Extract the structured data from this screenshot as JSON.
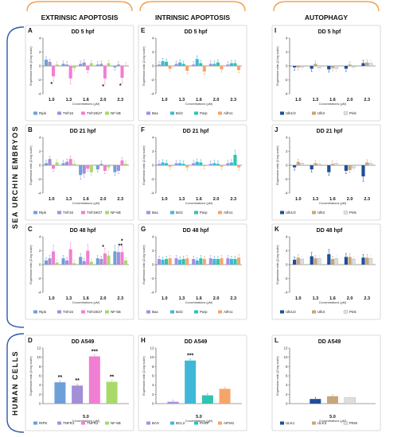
{
  "figure": {
    "columns": [
      "EXTRINSIC APOPTOSIS",
      "INTRINSIC APOPTOSIS",
      "AUTOPHAGY"
    ],
    "rows": [
      "SEA URCHIN EMBRYOS",
      "HUMAN CELLS"
    ]
  },
  "colors": {
    "extrinsic": [
      "#6f9fd8",
      "#a28fd6",
      "#f07fd3",
      "#a8d96a"
    ],
    "intrinsic": [
      "#a98ee0",
      "#3fb8d8",
      "#2fc3b0",
      "#f5a56a"
    ],
    "autophagy": [
      "#1f4e9a",
      "#c8a57a",
      "#dedede"
    ],
    "accent": "#f0a050",
    "bracket": "#2a5aa8"
  },
  "chart_data": [
    {
      "id": "A",
      "type": "bar",
      "title": "DD 5 hpf",
      "ylabel": "Expression ratio (2-log scale)",
      "xlabel": "Concentrations (μM)",
      "categories": [
        "1.0",
        "1.3",
        "1.6",
        "2.0",
        "2.3"
      ],
      "ylim": [
        -4,
        4
      ],
      "yticks": [
        4,
        2,
        0,
        -2,
        -4
      ],
      "series": [
        {
          "name": "Ripk",
          "values": [
            0.9,
            0.3,
            0.3,
            0.2,
            -0.2
          ]
        },
        {
          "name": "Tnfr16",
          "values": [
            0.6,
            0.2,
            0.5,
            0.3,
            0.2
          ]
        },
        {
          "name": "Tnfr19/27",
          "values": [
            -1.5,
            -1.8,
            -0.6,
            -1.8,
            -1.7
          ]
        },
        {
          "name": "NF-kB",
          "values": [
            0.2,
            -0.3,
            0.4,
            0.4,
            0.1
          ]
        }
      ],
      "annotations": [
        {
          "category": "1.0",
          "text": "*"
        },
        {
          "category": "2.0",
          "text": "*"
        },
        {
          "category": "2.3",
          "text": "*"
        }
      ]
    },
    {
      "id": "B",
      "type": "bar",
      "title": "DD 21 hpf",
      "ylabel": "Expression ratio (2-log scale)",
      "xlabel": "Concentrations (μM)",
      "categories": [
        "1.0",
        "1.3",
        "1.6",
        "2.0",
        "2.3"
      ],
      "ylim": [
        -4,
        4
      ],
      "yticks": [
        4,
        2,
        0,
        -2,
        -4
      ],
      "series": [
        {
          "name": "Ripk",
          "values": [
            0.3,
            0.3,
            -1.4,
            -0.6,
            -1.0
          ]
        },
        {
          "name": "Tnfr16",
          "values": [
            0.9,
            0.5,
            -1.2,
            0.2,
            -0.8
          ]
        },
        {
          "name": "Tnfr19/27",
          "values": [
            -0.5,
            0.9,
            -0.5,
            -0.8,
            0.7
          ]
        },
        {
          "name": "NF-kB",
          "values": [
            0.4,
            0.2,
            -1.0,
            -0.3,
            0.2
          ]
        }
      ],
      "annotations": []
    },
    {
      "id": "C",
      "type": "bar",
      "title": "DD 48 hpf",
      "ylabel": "Expression ratio (2-log scale)",
      "xlabel": "Concentrations (μM)",
      "categories": [
        "1.0",
        "1.3",
        "1.6",
        "2.0",
        "2.3"
      ],
      "ylim": [
        -4,
        4
      ],
      "yticks": [
        4,
        2,
        0,
        -2,
        -4
      ],
      "series": [
        {
          "name": "Ripk",
          "values": [
            0.6,
            0.9,
            1.1,
            0.9,
            1.9
          ]
        },
        {
          "name": "Tnfr16",
          "values": [
            0.9,
            0.6,
            0.5,
            0.8,
            1.8
          ]
        },
        {
          "name": "Tnfr19/27",
          "values": [
            1.9,
            2.2,
            2.0,
            1.6,
            1.8
          ]
        },
        {
          "name": "NF-kB",
          "values": [
            0.3,
            0.2,
            0.4,
            1.3,
            0.6
          ]
        }
      ],
      "annotations": [
        {
          "category": "2.0",
          "text": "*"
        },
        {
          "category": "2.3",
          "text": "**"
        },
        {
          "category": "2.3",
          "text": "*"
        }
      ]
    },
    {
      "id": "D",
      "type": "bar",
      "title": "DD A549",
      "ylabel": "Expression ratio (2-log scale)",
      "xlabel": "Concentrations (μM)",
      "categories": [
        "5.0"
      ],
      "ylim": [
        0,
        12
      ],
      "yticks": [
        12,
        10,
        8,
        6,
        4,
        2,
        0
      ],
      "series": [
        {
          "name": "RIPK",
          "values": [
            4.6
          ]
        },
        {
          "name": "TNFR1",
          "values": [
            3.9
          ]
        },
        {
          "name": "TNFR2",
          "values": [
            10.2
          ]
        },
        {
          "name": "NF-kB",
          "values": [
            4.7
          ]
        }
      ],
      "annotations": [
        {
          "series": "RIPK",
          "text": "**"
        },
        {
          "series": "TNFR1",
          "text": "**"
        },
        {
          "series": "TNFR2",
          "text": "***"
        },
        {
          "series": "NF-kB",
          "text": "**"
        }
      ]
    },
    {
      "id": "E",
      "type": "bar",
      "title": "DD 5 hpf",
      "ylabel": "Expression ratio (2-log scale)",
      "xlabel": "Concentrations (μM)",
      "categories": [
        "1.0",
        "1.3",
        "1.6",
        "2.0",
        "2.3"
      ],
      "ylim": [
        -4,
        4
      ],
      "yticks": [
        4,
        2,
        0,
        -2,
        -4
      ],
      "series": [
        {
          "name": "Bax",
          "values": [
            0.2,
            0.3,
            0.2,
            0.3,
            0.2
          ]
        },
        {
          "name": "Bcl2",
          "values": [
            0.7,
            0.5,
            1.0,
            0.3,
            0.4
          ]
        },
        {
          "name": "Parp",
          "values": [
            0.6,
            0.3,
            0.4,
            0.5,
            0.4
          ]
        },
        {
          "name": "Aifm1",
          "values": [
            -0.4,
            -0.7,
            -0.8,
            -0.5,
            -0.6
          ]
        }
      ],
      "annotations": []
    },
    {
      "id": "F",
      "type": "bar",
      "title": "DD 21 hpf",
      "ylabel": "Expression ratio (2-log scale)",
      "xlabel": "Concentrations (μM)",
      "categories": [
        "1.0",
        "1.3",
        "1.6",
        "2.0",
        "2.3"
      ],
      "ylim": [
        -4,
        4
      ],
      "yticks": [
        4,
        2,
        0,
        -2,
        -4
      ],
      "series": [
        {
          "name": "Bax",
          "values": [
            0.2,
            0.3,
            0.3,
            0.2,
            0.3
          ]
        },
        {
          "name": "Bcl2",
          "values": [
            0.4,
            0.3,
            0.5,
            0.3,
            0.4
          ]
        },
        {
          "name": "Parp",
          "values": [
            0.3,
            0.2,
            0.4,
            0.2,
            1.5
          ]
        },
        {
          "name": "Aifm1",
          "values": [
            -0.2,
            -0.3,
            -0.1,
            -0.2,
            -0.3
          ]
        }
      ],
      "annotations": []
    },
    {
      "id": "G",
      "type": "bar",
      "title": "DD 48 hpf",
      "ylabel": "Expression ratio (2-log scale)",
      "xlabel": "Concentrations (μM)",
      "categories": [
        "1.0",
        "1.3",
        "1.6",
        "2.0",
        "2.3"
      ],
      "ylim": [
        -4,
        4
      ],
      "yticks": [
        4,
        2,
        0,
        -2,
        -4
      ],
      "series": [
        {
          "name": "Bax",
          "values": [
            0.8,
            0.9,
            0.8,
            0.9,
            0.9
          ]
        },
        {
          "name": "Bcl2",
          "values": [
            0.7,
            0.7,
            0.6,
            0.8,
            0.8
          ]
        },
        {
          "name": "Parp",
          "values": [
            0.8,
            0.8,
            0.9,
            0.8,
            0.8
          ]
        },
        {
          "name": "Aifm1",
          "values": [
            0.9,
            0.9,
            0.8,
            0.9,
            1.0
          ]
        }
      ],
      "annotations": []
    },
    {
      "id": "H",
      "type": "bar",
      "title": "DD A549",
      "ylabel": "Expression ratio (2-log scale)",
      "xlabel": "Concentrations (μM)",
      "categories": [
        "5.0"
      ],
      "ylim": [
        0,
        12
      ],
      "yticks": [
        12,
        10,
        8,
        6,
        4,
        2,
        0
      ],
      "series": [
        {
          "name": "BAX",
          "values": [
            0.4
          ]
        },
        {
          "name": "BCL2",
          "values": [
            9.3
          ]
        },
        {
          "name": "PARP",
          "values": [
            1.8
          ]
        },
        {
          "name": "AIFM1",
          "values": [
            3.2
          ]
        }
      ],
      "annotations": [
        {
          "series": "BCL2",
          "text": "***"
        }
      ]
    },
    {
      "id": "I",
      "type": "bar",
      "title": "DD 5 hpf",
      "ylabel": "Expression ratio (2-log scale)",
      "xlabel": "Concentrations (μM)",
      "categories": [
        "1.0",
        "1.3",
        "1.6",
        "2.0",
        "2.3"
      ],
      "ylim": [
        -4,
        4
      ],
      "yticks": [
        4,
        2,
        0,
        -2,
        -4
      ],
      "series": [
        {
          "name": "Ulk1/2",
          "values": [
            -0.2,
            -0.4,
            -0.5,
            -0.4,
            0.4
          ]
        },
        {
          "name": "Ulk3",
          "values": [
            -0.2,
            0.3,
            -0.3,
            0.2,
            0.5
          ]
        },
        {
          "name": "Pink",
          "values": [
            -0.2,
            -0.3,
            -0.4,
            -0.2,
            0.4
          ]
        }
      ],
      "annotations": []
    },
    {
      "id": "J",
      "type": "bar",
      "title": "DD 21 hpf",
      "ylabel": "Expression ratio (2-log scale)",
      "xlabel": "Concentrations (μM)",
      "categories": [
        "1.0",
        "1.3",
        "1.6",
        "2.0",
        "2.3"
      ],
      "ylim": [
        -4,
        4
      ],
      "yticks": [
        4,
        2,
        0,
        -2,
        -4
      ],
      "series": [
        {
          "name": "Ulk1/2",
          "values": [
            -0.3,
            -0.6,
            -1.0,
            -0.8,
            -1.6
          ]
        },
        {
          "name": "Ulk3",
          "values": [
            0.5,
            0.3,
            0.2,
            -0.7,
            0.4
          ]
        },
        {
          "name": "Pink",
          "values": [
            0.3,
            0.2,
            0.3,
            -0.4,
            0.3
          ]
        }
      ],
      "annotations": []
    },
    {
      "id": "K",
      "type": "bar",
      "title": "DD 48 hpf",
      "ylabel": "Expression ratio (2-log scale)",
      "xlabel": "Concentrations (μM)",
      "categories": [
        "1.0",
        "1.3",
        "1.6",
        "2.0",
        "2.3"
      ],
      "ylim": [
        -4,
        4
      ],
      "yticks": [
        4,
        2,
        0,
        -2,
        -4
      ],
      "series": [
        {
          "name": "Ulk1/2",
          "values": [
            0.7,
            1.2,
            1.5,
            1.1,
            1.0
          ]
        },
        {
          "name": "Ulk3",
          "values": [
            1.0,
            0.9,
            0.8,
            1.1,
            1.0
          ]
        },
        {
          "name": "Pink",
          "values": [
            0.8,
            0.9,
            0.9,
            0.8,
            0.9
          ]
        }
      ],
      "annotations": []
    },
    {
      "id": "L",
      "type": "bar",
      "title": "DD A549",
      "ylabel": "Expression ratio (2-log scale)",
      "xlabel": "Concentrations (μM)",
      "categories": [
        "5.0"
      ],
      "ylim": [
        0,
        12
      ],
      "yticks": [
        12,
        10,
        8,
        6,
        4,
        2,
        0
      ],
      "series": [
        {
          "name": "ULK1",
          "values": [
            1.0
          ]
        },
        {
          "name": "ULK3",
          "values": [
            1.6
          ]
        },
        {
          "name": "PINK",
          "values": [
            1.3
          ]
        }
      ],
      "annotations": []
    }
  ]
}
